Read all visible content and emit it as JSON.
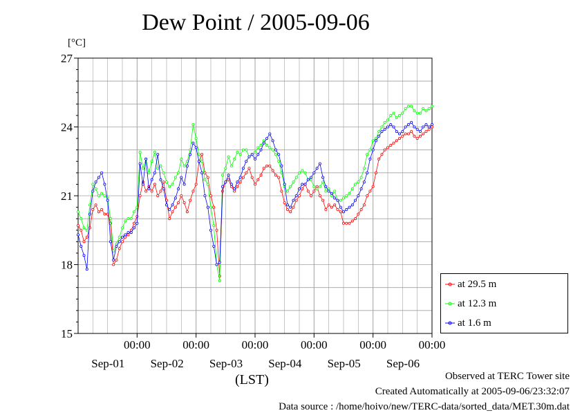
{
  "title": "Dew Point / 2005-09-06",
  "unit_label": "[°C]",
  "x_unit_label": "(LST)",
  "footer": {
    "observed": "Observed at TERC Tower site",
    "created": "Created Automatically at 2005-09-06/23:32:07",
    "source": "Data source : /home/hoivo/new/TERC-data/sorted_data/MET.30m.dat"
  },
  "colors": {
    "red": "#ff0000",
    "green": "#00ff00",
    "blue": "#0000ff",
    "grid": "#a0a0a0"
  },
  "chart_data": {
    "type": "line",
    "title": "Dew Point / 2005-09-06",
    "ylabel": "[°C]",
    "xlabel": "(LST)",
    "ylim": [
      15,
      27
    ],
    "xlim": [
      0,
      6
    ],
    "x_units": "days from start of plotted period",
    "yticks": [
      15,
      18,
      21,
      24,
      27
    ],
    "xtick_labels": [
      {
        "pos": 1,
        "time": "00:00",
        "date": "Sep-01"
      },
      {
        "pos": 2,
        "time": "00:00",
        "date": "Sep-02"
      },
      {
        "pos": 3,
        "time": "00:00",
        "date": "Sep-03"
      },
      {
        "pos": 4,
        "time": "00:00",
        "date": "Sep-04"
      },
      {
        "pos": 5,
        "time": "00:00",
        "date": "Sep-05"
      },
      {
        "pos": 6,
        "time": "00:00",
        "date": "Sep-06"
      }
    ],
    "grid": true,
    "legend_position": "right-bottom",
    "series": [
      {
        "name": "at 29.5 m",
        "color": "#ff0000",
        "x": [
          0,
          0.05,
          0.1,
          0.15,
          0.2,
          0.25,
          0.3,
          0.35,
          0.4,
          0.45,
          0.5,
          0.55,
          0.6,
          0.65,
          0.7,
          0.75,
          0.8,
          0.85,
          0.9,
          0.95,
          1.0,
          1.05,
          1.1,
          1.15,
          1.2,
          1.25,
          1.3,
          1.35,
          1.4,
          1.45,
          1.5,
          1.55,
          1.6,
          1.65,
          1.7,
          1.75,
          1.8,
          1.85,
          1.9,
          1.95,
          2.0,
          2.05,
          2.1,
          2.15,
          2.2,
          2.25,
          2.3,
          2.35,
          2.4,
          2.45,
          2.5,
          2.55,
          2.6,
          2.65,
          2.7,
          2.75,
          2.8,
          2.85,
          2.9,
          2.95,
          3.0,
          3.05,
          3.1,
          3.15,
          3.2,
          3.25,
          3.3,
          3.35,
          3.4,
          3.45,
          3.5,
          3.55,
          3.6,
          3.65,
          3.7,
          3.75,
          3.8,
          3.85,
          3.9,
          3.95,
          4.0,
          4.05,
          4.1,
          4.15,
          4.2,
          4.25,
          4.3,
          4.35,
          4.4,
          4.45,
          4.5,
          4.55,
          4.6,
          4.65,
          4.7,
          4.75,
          4.8,
          4.85,
          4.9,
          4.95,
          5.0,
          5.05,
          5.1,
          5.15,
          5.2,
          5.25,
          5.3,
          5.35,
          5.4,
          5.45,
          5.5,
          5.55,
          5.6,
          5.65,
          5.7,
          5.75,
          5.8,
          5.85,
          5.9,
          5.95,
          6.0,
          6.05
        ],
        "values": [
          19.7,
          19.5,
          19.0,
          19.2,
          19.6,
          20.4,
          20.6,
          20.3,
          20.4,
          20.2,
          20.2,
          19.8,
          18.0,
          18.2,
          18.7,
          19.0,
          19.2,
          19.3,
          19.5,
          19.8,
          20.1,
          21.0,
          21.6,
          21.2,
          21.4,
          21.2,
          21.5,
          21.0,
          21.2,
          21.6,
          20.8,
          20.0,
          20.3,
          20.5,
          20.7,
          21.0,
          20.7,
          20.3,
          20.8,
          21.2,
          21.5,
          22.5,
          22.8,
          22.0,
          21.8,
          21.0,
          20.5,
          19.5,
          17.5,
          21.2,
          21.6,
          21.7,
          21.4,
          21.2,
          21.4,
          21.6,
          21.8,
          22.0,
          22.2,
          21.8,
          21.5,
          21.7,
          21.9,
          22.2,
          22.3,
          22.3,
          22.1,
          21.9,
          21.8,
          21.2,
          20.7,
          20.4,
          20.3,
          20.5,
          20.8,
          21.0,
          21.3,
          21.5,
          21.2,
          21.0,
          21.2,
          21.4,
          21.0,
          20.8,
          20.4,
          20.6,
          20.5,
          20.6,
          20.4,
          20.3,
          19.8,
          19.8,
          19.8,
          19.9,
          20.0,
          20.2,
          20.4,
          20.6,
          21.0,
          21.2,
          21.4,
          22.0,
          22.6,
          22.8,
          23.0,
          23.1,
          23.2,
          23.3,
          23.4,
          23.5,
          23.6,
          23.7,
          23.7,
          23.8,
          23.6,
          23.5,
          23.6,
          23.7,
          23.8,
          23.9,
          24.0,
          24.0
        ]
      },
      {
        "name": "at 12.3 m",
        "color": "#00ff00",
        "x": [
          0,
          0.05,
          0.1,
          0.15,
          0.2,
          0.25,
          0.3,
          0.35,
          0.4,
          0.45,
          0.5,
          0.55,
          0.6,
          0.65,
          0.7,
          0.75,
          0.8,
          0.85,
          0.9,
          0.95,
          1.0,
          1.05,
          1.1,
          1.15,
          1.2,
          1.25,
          1.3,
          1.35,
          1.4,
          1.45,
          1.5,
          1.55,
          1.6,
          1.65,
          1.7,
          1.75,
          1.8,
          1.85,
          1.9,
          1.95,
          2.0,
          2.05,
          2.1,
          2.15,
          2.2,
          2.25,
          2.3,
          2.35,
          2.4,
          2.45,
          2.5,
          2.55,
          2.6,
          2.65,
          2.7,
          2.75,
          2.8,
          2.85,
          2.9,
          2.95,
          3.0,
          3.05,
          3.1,
          3.15,
          3.2,
          3.25,
          3.3,
          3.35,
          3.4,
          3.45,
          3.5,
          3.55,
          3.6,
          3.65,
          3.7,
          3.75,
          3.8,
          3.85,
          3.9,
          3.95,
          4.0,
          4.05,
          4.1,
          4.15,
          4.2,
          4.25,
          4.3,
          4.35,
          4.4,
          4.45,
          4.5,
          4.55,
          4.6,
          4.65,
          4.7,
          4.75,
          4.8,
          4.85,
          4.9,
          4.95,
          5.0,
          5.05,
          5.1,
          5.15,
          5.2,
          5.25,
          5.3,
          5.35,
          5.4,
          5.45,
          5.5,
          5.55,
          5.6,
          5.65,
          5.7,
          5.75,
          5.8,
          5.85,
          5.9,
          5.95,
          6.0,
          6.05
        ],
        "values": [
          20.3,
          20.0,
          19.6,
          19.5,
          20.6,
          21.5,
          21.3,
          21.0,
          21.1,
          21.0,
          20.9,
          20.0,
          18.6,
          18.9,
          19.2,
          19.6,
          19.9,
          20.0,
          20.0,
          20.3,
          20.5,
          22.9,
          22.2,
          22.6,
          22.0,
          22.5,
          22.9,
          22.2,
          22.3,
          22.0,
          21.6,
          21.4,
          21.5,
          21.8,
          22.0,
          22.6,
          22.3,
          22.5,
          23.0,
          24.1,
          23.5,
          22.8,
          22.5,
          21.7,
          21.5,
          20.5,
          19.7,
          18.0,
          17.3,
          21.9,
          22.2,
          22.7,
          22.3,
          22.6,
          22.9,
          22.8,
          23.0,
          23.0,
          22.7,
          22.8,
          22.9,
          23.1,
          23.2,
          23.4,
          23.2,
          23.1,
          23.0,
          22.8,
          22.5,
          22.0,
          21.4,
          21.2,
          21.4,
          21.6,
          21.8,
          22.0,
          22.1,
          22.0,
          21.7,
          21.7,
          21.4,
          21.3,
          21.4,
          21.6,
          21.2,
          21.3,
          21.0,
          21.2,
          20.8,
          20.8,
          20.9,
          21.0,
          21.1,
          21.3,
          21.5,
          21.6,
          21.8,
          22.2,
          22.8,
          23.0,
          23.4,
          23.5,
          23.8,
          24.0,
          24.2,
          24.3,
          24.5,
          24.6,
          24.4,
          24.5,
          24.6,
          24.8,
          24.9,
          24.9,
          24.7,
          24.6,
          24.6,
          24.8,
          24.7,
          24.8,
          24.9,
          24.8
        ]
      },
      {
        "name": "at 1.6 m",
        "color": "#0000ff",
        "x": [
          0,
          0.05,
          0.1,
          0.15,
          0.2,
          0.25,
          0.3,
          0.35,
          0.4,
          0.45,
          0.5,
          0.55,
          0.6,
          0.65,
          0.7,
          0.75,
          0.8,
          0.85,
          0.9,
          0.95,
          1.0,
          1.05,
          1.1,
          1.15,
          1.2,
          1.25,
          1.3,
          1.35,
          1.4,
          1.45,
          1.5,
          1.55,
          1.6,
          1.65,
          1.7,
          1.75,
          1.8,
          1.85,
          1.9,
          1.95,
          2.0,
          2.05,
          2.1,
          2.15,
          2.2,
          2.25,
          2.3,
          2.35,
          2.4,
          2.45,
          2.5,
          2.55,
          2.6,
          2.65,
          2.7,
          2.75,
          2.8,
          2.85,
          2.9,
          2.95,
          3.0,
          3.05,
          3.1,
          3.15,
          3.2,
          3.25,
          3.3,
          3.35,
          3.4,
          3.45,
          3.5,
          3.55,
          3.6,
          3.65,
          3.7,
          3.75,
          3.8,
          3.85,
          3.9,
          3.95,
          4.0,
          4.05,
          4.1,
          4.15,
          4.2,
          4.25,
          4.3,
          4.35,
          4.4,
          4.45,
          4.5,
          4.55,
          4.6,
          4.65,
          4.7,
          4.75,
          4.8,
          4.85,
          4.9,
          4.95,
          5.0,
          5.05,
          5.1,
          5.15,
          5.2,
          5.25,
          5.3,
          5.35,
          5.4,
          5.45,
          5.5,
          5.55,
          5.6,
          5.65,
          5.7,
          5.75,
          5.8,
          5.85,
          5.9,
          5.95,
          6.0,
          6.05
        ],
        "values": [
          19.3,
          18.8,
          18.4,
          17.8,
          20.2,
          21.2,
          21.6,
          21.8,
          22.0,
          21.5,
          20.8,
          19.0,
          18.2,
          18.8,
          19.0,
          19.2,
          19.3,
          19.4,
          19.4,
          19.6,
          19.8,
          22.4,
          21.5,
          22.6,
          21.3,
          21.7,
          22.0,
          22.8,
          21.7,
          21.3,
          20.6,
          20.4,
          20.6,
          20.9,
          21.3,
          21.8,
          21.5,
          22.3,
          22.8,
          23.3,
          23.1,
          22.5,
          22.0,
          21.0,
          20.5,
          19.5,
          18.8,
          18.0,
          18.1,
          21.4,
          21.6,
          21.9,
          21.5,
          21.3,
          21.6,
          21.8,
          22.2,
          22.5,
          22.7,
          22.8,
          22.6,
          22.8,
          23.0,
          23.3,
          23.5,
          23.7,
          23.4,
          23.0,
          22.8,
          22.3,
          21.5,
          20.6,
          20.5,
          20.8,
          21.0,
          21.3,
          21.5,
          21.5,
          21.7,
          21.8,
          22.0,
          22.2,
          22.4,
          21.8,
          21.4,
          21.2,
          21.1,
          20.9,
          20.8,
          20.5,
          20.3,
          20.4,
          20.5,
          20.6,
          20.8,
          21.0,
          21.3,
          21.6,
          22.0,
          22.6,
          23.0,
          23.4,
          23.6,
          23.8,
          23.9,
          24.0,
          24.1,
          24.0,
          23.8,
          23.7,
          23.8,
          24.0,
          24.1,
          24.2,
          24.0,
          23.9,
          23.8,
          24.0,
          24.1,
          24.0,
          24.1,
          24.1
        ]
      }
    ]
  }
}
